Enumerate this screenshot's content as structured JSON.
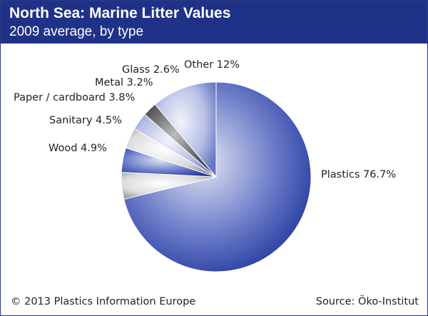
{
  "header": {
    "title": "North Sea: Marine Litter Values",
    "subtitle": "2009 average, by type"
  },
  "footer": {
    "copyright": "© 2013 Plastics Information Europe",
    "source": "Source: Öko-Institut"
  },
  "colors": {
    "header_bg": "#1f3287",
    "plastics": "#1e339a",
    "wood": "#9a9a9a",
    "sanitary": "#3a4fae",
    "paper": "#c8c8c8",
    "metal": "#5b6cc0",
    "glass": "#3c3c3c",
    "other": "#8f9ad6"
  },
  "chart_data": {
    "type": "pie",
    "title": "North Sea: Marine Litter Values",
    "subtitle": "2009 average, by type",
    "slices": [
      {
        "name": "Plastics",
        "value": 76.7,
        "label": "Plastics 76.7%"
      },
      {
        "name": "Wood",
        "value": 4.9,
        "label": "Wood 4.9%"
      },
      {
        "name": "Sanitary",
        "value": 4.5,
        "label": "Sanitary 4.5%"
      },
      {
        "name": "Paper / cardboard",
        "value": 3.8,
        "label": "Paper / cardboard 3.8%"
      },
      {
        "name": "Metal",
        "value": 3.2,
        "label": "Metal 3.2%"
      },
      {
        "name": "Glass",
        "value": 2.6,
        "label": "Glass 2.6%"
      },
      {
        "name": "Other",
        "value": 12,
        "label": "Other 12%"
      }
    ]
  }
}
